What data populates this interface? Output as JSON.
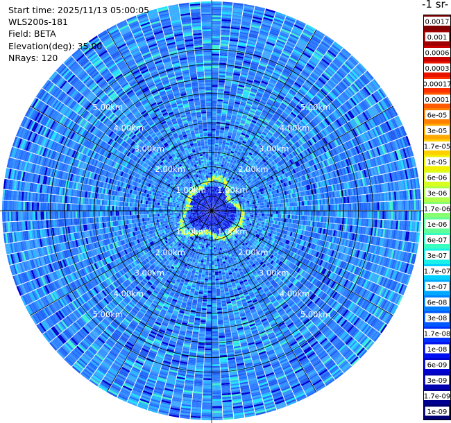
{
  "info": {
    "start_time": "Start time: 2025/11/13 05:00:05",
    "instrument": "WLS200s-181",
    "field": "Field: BETA",
    "elevation": "Elevation(deg): 35.00",
    "nrays": "NRays: 120"
  },
  "colorbar": {
    "units_label": "-1 sr-",
    "labels": [
      "0.0017",
      "0.001",
      "0.0006",
      "0.0003",
      "0.00017",
      "0.0001",
      "6e-05",
      "3e-05",
      "1.7e-05",
      "1e-05",
      "6e-06",
      "3e-06",
      "1.7e-06",
      "1e-06",
      "6e-07",
      "3e-07",
      "1.7e-07",
      "1e-07",
      "6e-08",
      "3e-08",
      "1.7e-08",
      "1e-08",
      "6e-09",
      "3e-09",
      "1.7e-09",
      "1e-09"
    ],
    "colors": [
      "#7f0000",
      "#a00000",
      "#c80000",
      "#e81400",
      "#ff3000",
      "#ff5a00",
      "#ff8000",
      "#ffa800",
      "#ffd000",
      "#f0f000",
      "#d8ff20",
      "#b0ff48",
      "#88ff70",
      "#60ff98",
      "#38ffc0",
      "#18f0e8",
      "#00d0ff",
      "#00a8ff",
      "#0080ff",
      "#0058ff",
      "#0030ff",
      "#0010f0",
      "#0000d0",
      "#0000b0",
      "#000090",
      "#000070"
    ]
  },
  "chart_data": {
    "type": "heatmap",
    "projection": "polar",
    "nrays": 120,
    "range_unit": "km",
    "max_range_km": 5.8,
    "ring_labels": [
      "1.00km",
      "2.00km",
      "3.00km",
      "4.00km",
      "5.00km"
    ],
    "ring_label_values_km": [
      1,
      2,
      3,
      4,
      5
    ],
    "enhanced_ring_km": [
      0.75,
      1.2
    ],
    "value_scale": "log",
    "value_range": [
      1e-09,
      0.0017
    ]
  }
}
